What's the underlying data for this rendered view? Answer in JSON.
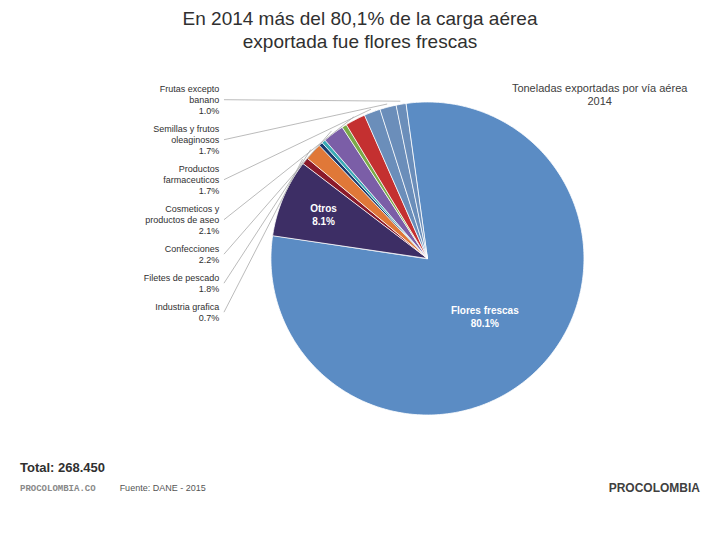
{
  "chart_data": {
    "type": "pie",
    "title": "En 2014 más del 80,1% de la carga aérea\nexportada fue flores frescas",
    "subtitle": "Toneladas exportadas por vía aérea\n2014",
    "categories": [
      "Flores frescas",
      "Otros",
      "Industria grafica",
      "Filetes de pescado",
      null,
      null,
      "Confecciones",
      null,
      "Cosmeticos y\nproductos de aseo",
      "Productos\nfarmaceuticos",
      "Semillas y frutos\noleaginosos",
      "Frutas excepto\nbanano"
    ],
    "values": [
      80.1,
      8.1,
      0.7,
      1.8,
      0.4,
      0.4,
      2.2,
      0.5,
      2.1,
      1.7,
      1.7,
      1.0
    ],
    "value_labels": [
      "80.1%",
      "8.1%",
      "0.7%",
      "1.8%",
      null,
      null,
      "2.2%",
      null,
      "2.1%",
      "1.7%",
      "1.7%",
      "1.0%"
    ],
    "colors": [
      "#5b8cc4",
      "#3d2e65",
      "#8b1a2a",
      "#e07838",
      "#1a3a6e",
      "#3aabb5",
      "#7b5ea7",
      "#7aaa48",
      "#c43030",
      "#6b8eba",
      "#6b8eba",
      "#6b8eba"
    ],
    "data_labels": true,
    "annotations": [
      "Total: 268.450",
      "PROCOLOMBIA.CO",
      "Fuente: DANE - 2015",
      "PROCOLOMBIA"
    ]
  }
}
